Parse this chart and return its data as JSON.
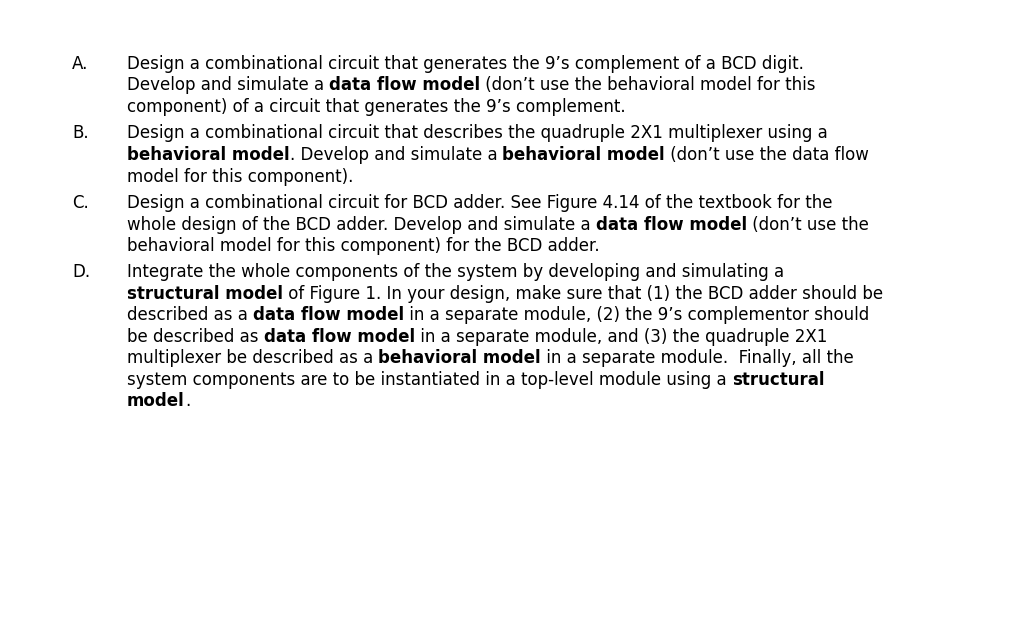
{
  "background_color": "#ffffff",
  "text_color": "#000000",
  "figsize": [
    10.17,
    6.2
  ],
  "dpi": 100,
  "font_size": 12.0,
  "font_family": "DejaVu Sans",
  "items": [
    {
      "label": "A.",
      "lines": [
        [
          {
            "text": "Design a combinational circuit that generates the 9’s complement of a BCD digit.",
            "bold": false
          }
        ],
        [
          {
            "text": "Develop and simulate a ",
            "bold": false
          },
          {
            "text": "data flow model",
            "bold": true
          },
          {
            "text": " (don’t use the behavioral model for this",
            "bold": false
          }
        ],
        [
          {
            "text": "component) of a circuit that generates the 9’s complement.",
            "bold": false
          }
        ]
      ]
    },
    {
      "label": "B.",
      "lines": [
        [
          {
            "text": "Design a combinational circuit that describes the quadruple 2X1 multiplexer using a",
            "bold": false
          }
        ],
        [
          {
            "text": "behavioral model",
            "bold": true
          },
          {
            "text": ". Develop and simulate a ",
            "bold": false
          },
          {
            "text": "behavioral model",
            "bold": true
          },
          {
            "text": " (don’t use the data flow",
            "bold": false
          }
        ],
        [
          {
            "text": "model for this component).",
            "bold": false
          }
        ]
      ]
    },
    {
      "label": "C.",
      "lines": [
        [
          {
            "text": "Design a combinational circuit for BCD adder. See Figure 4.14 of the textbook for the",
            "bold": false
          }
        ],
        [
          {
            "text": "whole design of the BCD adder. Develop and simulate a ",
            "bold": false
          },
          {
            "text": "data flow model",
            "bold": true
          },
          {
            "text": " (don’t use the",
            "bold": false
          }
        ],
        [
          {
            "text": "behavioral model for this component) for the BCD adder.",
            "bold": false
          }
        ]
      ]
    },
    {
      "label": "D.",
      "lines": [
        [
          {
            "text": "Integrate the whole components of the system by developing and simulating a",
            "bold": false
          }
        ],
        [
          {
            "text": "structural model",
            "bold": true
          },
          {
            "text": " of Figure 1. In your design, make sure that (1) the BCD adder should be",
            "bold": false
          }
        ],
        [
          {
            "text": "described as a ",
            "bold": false
          },
          {
            "text": "data flow model",
            "bold": true
          },
          {
            "text": " in a separate module, (2) the 9’s complementor should",
            "bold": false
          }
        ],
        [
          {
            "text": "be described as ",
            "bold": false
          },
          {
            "text": "data flow model",
            "bold": true
          },
          {
            "text": " in a separate module, and (3) the quadruple 2X1",
            "bold": false
          }
        ],
        [
          {
            "text": "multiplexer be described as a ",
            "bold": false
          },
          {
            "text": "behavioral model",
            "bold": true
          },
          {
            "text": " in a separate module.  Finally, all the",
            "bold": false
          }
        ],
        [
          {
            "text": "system components are to be instantiated in a top-level module using a ",
            "bold": false
          },
          {
            "text": "structural",
            "bold": true
          }
        ],
        [
          {
            "text": "model",
            "bold": true
          },
          {
            "text": ".",
            "bold": false
          }
        ]
      ]
    }
  ]
}
